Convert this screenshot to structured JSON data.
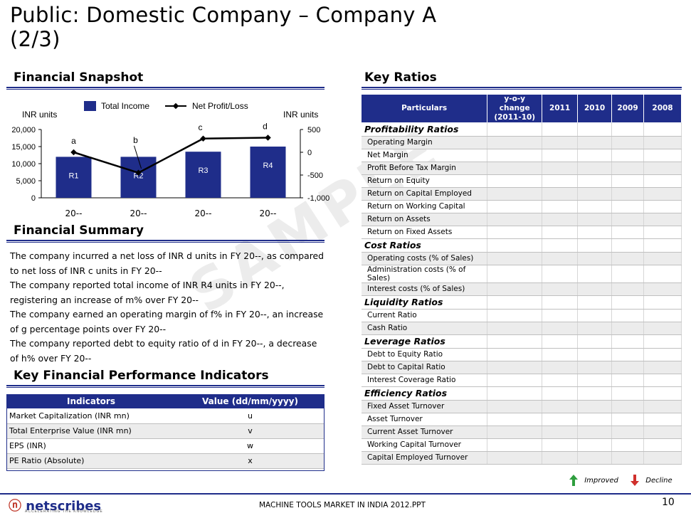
{
  "title_line1": "Public: Domestic Company – Company A",
  "title_line2": "(2/3)",
  "snapshot": {
    "title": "Financial Snapshot"
  },
  "chart_data": {
    "type": "bar",
    "categories": [
      "20--",
      "20--",
      "20--",
      "20--"
    ],
    "series": [
      {
        "name": "Total Income",
        "values": [
          12000,
          12000,
          13500,
          15000
        ],
        "labels": [
          "R1",
          "R2",
          "R3",
          "R4"
        ],
        "color": "#1f2d8a",
        "axis": "left"
      },
      {
        "name": "Net Profit/Loss",
        "values": [
          0,
          -450,
          300,
          320
        ],
        "labels": [
          "a",
          "b",
          "c",
          "d"
        ],
        "color": "#000000",
        "axis": "right",
        "type": "line"
      }
    ],
    "left_axis": {
      "label": "INR units",
      "ticks": [
        "20,000",
        "15,000",
        "10,000",
        "5,000",
        "0"
      ],
      "ylim": [
        0,
        20000
      ]
    },
    "right_axis": {
      "label": "INR units",
      "ticks": [
        "500",
        "0",
        "-500",
        "-1,000"
      ],
      "ylim": [
        -1000,
        500
      ]
    },
    "legend_position": "top"
  },
  "summary": {
    "title": "Financial Summary",
    "lines": [
      "The company incurred a net loss of INR d units in FY 20--, as compared",
      "to net loss of INR c units in FY 20--",
      "The company reported total income of INR R4 units in FY 20--,",
      "registering an increase of m% over FY 20--",
      "The company earned an operating margin of f% in FY 20--, an increase",
      "of g percentage points over FY 20--",
      "The company reported debt to equity ratio of d in FY 20--, a decrease",
      "of h% over FY 20--"
    ]
  },
  "kpi": {
    "title": "Key Financial Performance Indicators",
    "headers": [
      "Indicators",
      "Value (dd/mm/yyyy)"
    ],
    "rows": [
      {
        "label": "Market Capitalization (INR mn)",
        "value": "u"
      },
      {
        "label": "Total Enterprise Value (INR mn)",
        "value": "v"
      },
      {
        "label": "EPS (INR)",
        "value": "w"
      },
      {
        "label": "PE Ratio (Absolute)",
        "value": "x"
      }
    ]
  },
  "ratios": {
    "title": "Key Ratios",
    "headers": [
      "Particulars",
      "y-o-y change (2011-10)",
      "2011",
      "2010",
      "2009",
      "2008"
    ],
    "groups": [
      {
        "category": "Profitability Ratios",
        "items": [
          "Operating Margin",
          "Net Margin",
          "Profit Before Tax Margin",
          "Return on Equity",
          "Return on Capital Employed",
          "Return on Working Capital",
          "Return on Assets",
          "Return on Fixed Assets"
        ]
      },
      {
        "category": "Cost Ratios",
        "items": [
          "Operating costs (% of Sales)",
          "Administration costs (% of Sales)",
          "Interest costs (% of Sales)"
        ]
      },
      {
        "category": "Liquidity Ratios",
        "items": [
          "Current Ratio",
          "Cash Ratio"
        ]
      },
      {
        "category": "Leverage Ratios",
        "items": [
          "Debt to Equity Ratio",
          "Debt to Capital Ratio",
          "Interest Coverage Ratio"
        ]
      },
      {
        "category": "Efficiency Ratios",
        "items": [
          "Fixed Asset Turnover",
          "Asset Turnover",
          "Current Asset Turnover",
          "Working Capital Turnover",
          "Capital Employed Turnover"
        ]
      }
    ],
    "legend_improved": "Improved",
    "legend_decline": "Decline"
  },
  "watermark": "SAMPLE",
  "footer": {
    "logo": "netscribes",
    "tagline": "ACCELERATING THE KNOWLEDGE",
    "text": "MACHINE TOOLS MARKET IN INDIA 2012.PPT",
    "page": "10"
  },
  "colors": {
    "accent": "#1f2d8a",
    "improved": "#2e9e3e",
    "decline": "#d0302c"
  }
}
